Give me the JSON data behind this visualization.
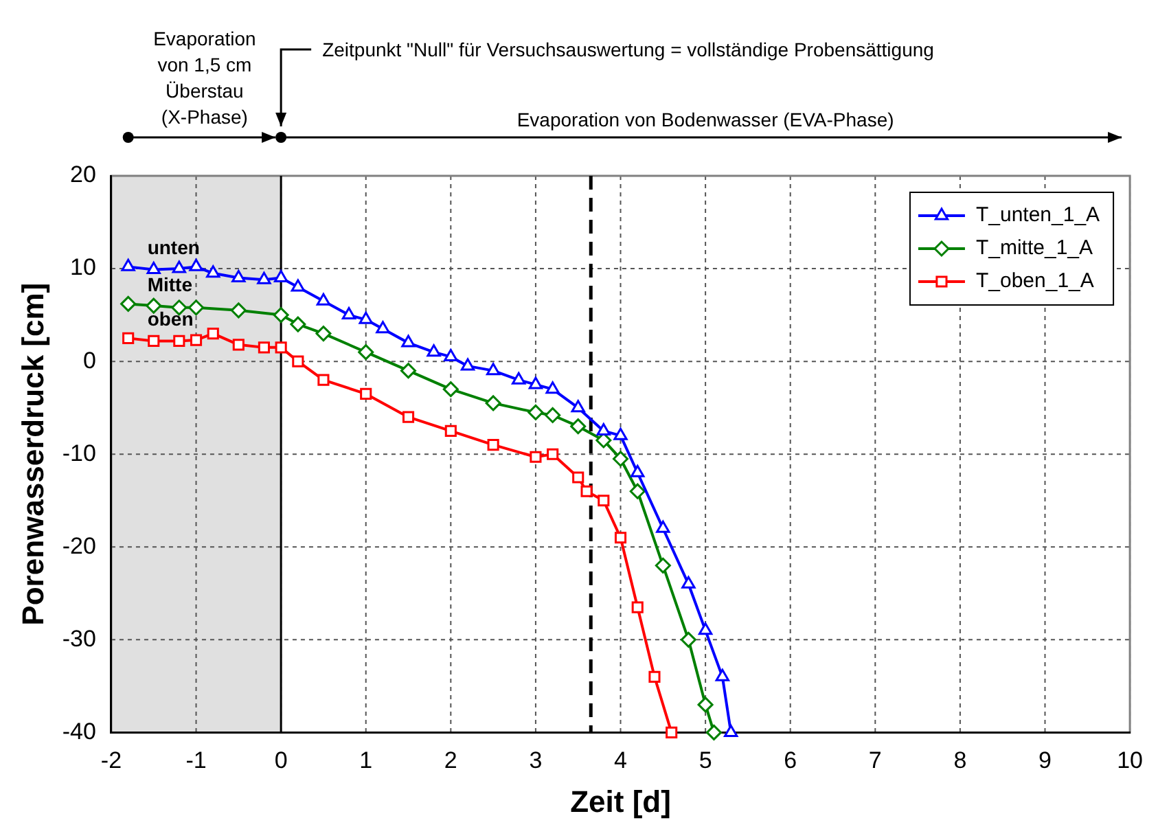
{
  "chart_data": {
    "type": "line",
    "xlabel": "Zeit [d]",
    "ylabel": "Porenwasserdruck [cm]",
    "xlim": [
      -2,
      10
    ],
    "xticks": [
      -2,
      -1,
      0,
      1,
      2,
      3,
      4,
      5,
      6,
      7,
      8,
      9,
      10
    ],
    "ylim": [
      -40,
      20
    ],
    "yticks": [
      -40,
      -30,
      -20,
      -10,
      0,
      10,
      20
    ],
    "grid": true,
    "legend": "top right",
    "line_style": "solid",
    "series": [
      {
        "name": "T_unten_1_A",
        "color": "#0000ff",
        "marker": "triangle",
        "x": [
          -1.8,
          -1.5,
          -1.2,
          -1,
          -0.8,
          -0.5,
          -0.2,
          0,
          0.2,
          0.5,
          0.8,
          1,
          1.2,
          1.5,
          1.8,
          2,
          2.2,
          2.5,
          2.8,
          3,
          3.2,
          3.5,
          3.8,
          4,
          4.2,
          4.5,
          4.8,
          5,
          5.2,
          5.3
        ],
        "values": [
          10.2,
          9.9,
          10,
          10.2,
          9.5,
          9,
          8.8,
          9,
          8,
          6.5,
          5,
          4.5,
          3.5,
          2,
          1,
          0.5,
          -0.5,
          -1,
          -2,
          -2.5,
          -3,
          -5,
          -7.5,
          -8,
          -12,
          -18,
          -24,
          -29,
          -34,
          -40
        ]
      },
      {
        "name": "T_mitte_1_A",
        "color": "#008000",
        "marker": "diamond",
        "x": [
          -1.8,
          -1.5,
          -1.2,
          -1,
          -0.5,
          0,
          0.2,
          0.5,
          1,
          1.5,
          2,
          2.5,
          3,
          3.2,
          3.5,
          3.8,
          4,
          4.2,
          4.5,
          4.8,
          5,
          5.1
        ],
        "values": [
          6.2,
          6,
          5.8,
          5.8,
          5.5,
          5,
          4,
          3,
          1,
          -1,
          -3,
          -4.5,
          -5.5,
          -5.8,
          -7,
          -8.5,
          -10.5,
          -14,
          -22,
          -30,
          -37,
          -40
        ]
      },
      {
        "name": "T_oben_1_A",
        "color": "#ff0000",
        "marker": "square",
        "x": [
          -1.8,
          -1.5,
          -1.2,
          -1,
          -0.8,
          -0.5,
          -0.2,
          0,
          0.2,
          0.5,
          1,
          1.5,
          2,
          2.5,
          3,
          3.2,
          3.5,
          3.6,
          3.8,
          4,
          4.2,
          4.4,
          4.6
        ],
        "values": [
          2.5,
          2.2,
          2.2,
          2.3,
          3,
          1.8,
          1.5,
          1.5,
          0,
          -2,
          -3.5,
          -6,
          -7.5,
          -9,
          -10.3,
          -10,
          -12.5,
          -14,
          -15,
          -19,
          -26.5,
          -34,
          -40
        ]
      }
    ],
    "bands": [
      {
        "axis": "x",
        "from": -2,
        "to": 0,
        "color": "#e0e0e0"
      }
    ],
    "ref_lines": [
      {
        "axis": "x",
        "value": 0,
        "line_style": "solid",
        "color": "#000000"
      },
      {
        "axis": "x",
        "value": 3.65,
        "line_style": "dashed",
        "color": "#000000"
      }
    ],
    "annotations": [
      "Evaporation von 1,5 cm Überstau (X-Phase)",
      "Zeitpunkt \"Null\" für Versuchsauswertung = vollständige Probensättigung",
      "Evaporation von Bodenwasser (EVA-Phase)",
      "unten",
      "Mitte",
      "oben"
    ]
  }
}
